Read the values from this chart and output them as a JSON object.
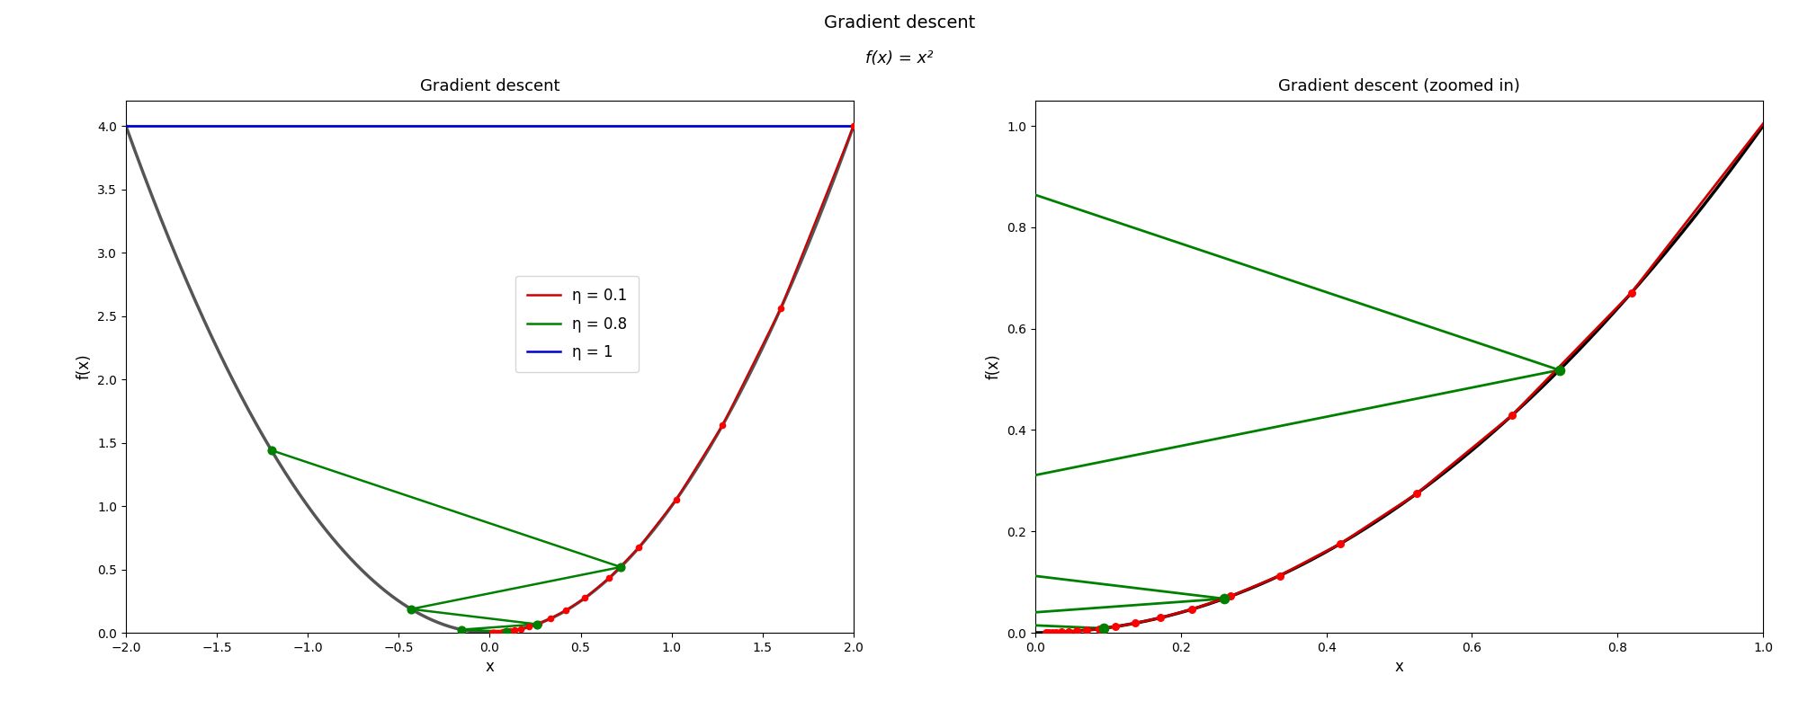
{
  "title": "Gradient descent",
  "subtitle": "f(x) = x²",
  "left_title": "Gradient descent",
  "right_title": "Gradient descent (zoomed in)",
  "xlabel": "x",
  "ylabel": "f(x)",
  "curve_color": "#555555",
  "eta_01_color": "#cc0000",
  "eta_08_color": "#008000",
  "eta_1_color": "#0000cc",
  "dot_color_red": "#ff0000",
  "dot_color_green": "#008000",
  "x0_eta01": 2.0,
  "x0_eta08": -1.2,
  "eta_01": 0.1,
  "eta_08": 0.8,
  "n_steps_01": 22,
  "n_steps_08": 5,
  "xlim_left": [
    -2.0,
    2.0
  ],
  "ylim_left": [
    0.0,
    4.2
  ],
  "xlim_right": [
    0.0,
    1.0
  ],
  "ylim_right": [
    0.0,
    1.05
  ],
  "legend_labels": [
    "η = 0.1",
    "η = 0.8",
    "η = 1"
  ],
  "background_color": "#ffffff",
  "figsize": [
    20.0,
    8.0
  ],
  "dpi": 100
}
